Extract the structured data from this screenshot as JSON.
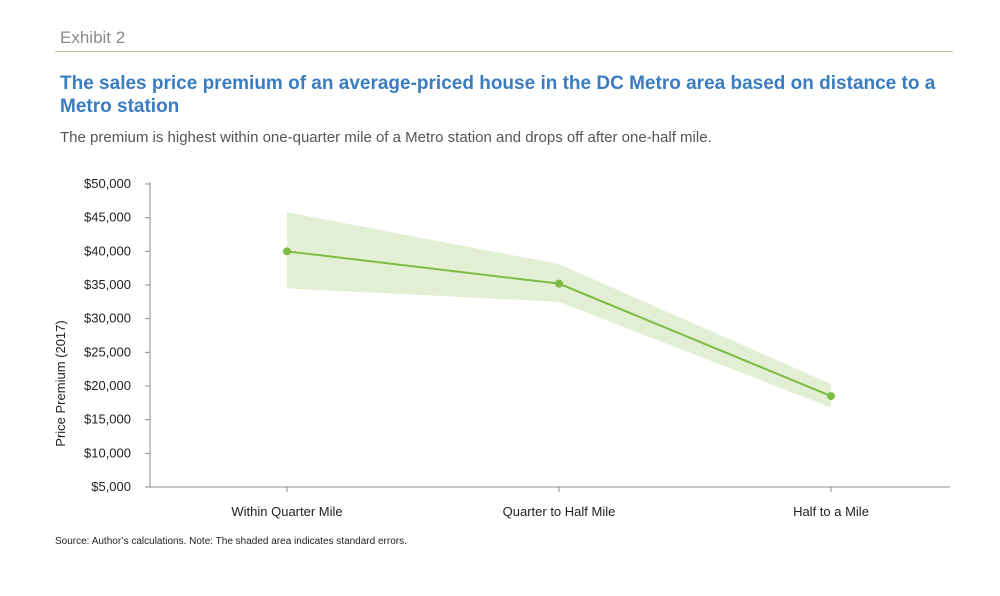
{
  "header": {
    "exhibit": "Exhibit 2",
    "title": "The sales price premium of an average-priced house in the DC Metro area based on distance to a Metro station",
    "subtitle": "The premium is highest within one-quarter mile of a Metro station and drops off after one-half mile."
  },
  "footer": {
    "source": "Source: Author’s calculations. Note: The shaded area indicates standard errors."
  },
  "colors": {
    "line": "#7dbb42",
    "band": "#e2efd4",
    "title": "#3a7cc0"
  },
  "chart_data": {
    "type": "line",
    "title": "",
    "xlabel": "",
    "ylabel": "Price Premium (2017)",
    "categories": [
      "Within Quarter Mile",
      "Quarter to Half Mile",
      "Half to a Mile"
    ],
    "series": [
      {
        "values": [
          40000,
          35200,
          18500
        ],
        "lower": [
          34500,
          32500,
          16800
        ],
        "upper": [
          45800,
          38100,
          20300
        ]
      }
    ],
    "ylim": [
      5000,
      50000
    ],
    "yticks": [
      5000,
      10000,
      15000,
      20000,
      25000,
      30000,
      35000,
      40000,
      45000,
      50000
    ],
    "ytick_labels": [
      "$5,000",
      "$10,000",
      "$15,000",
      "$20,000",
      "$25,000",
      "$30,000",
      "$35,000",
      "$40,000",
      "$45,000",
      "$50,000"
    ],
    "grid": false,
    "legend": "none"
  }
}
